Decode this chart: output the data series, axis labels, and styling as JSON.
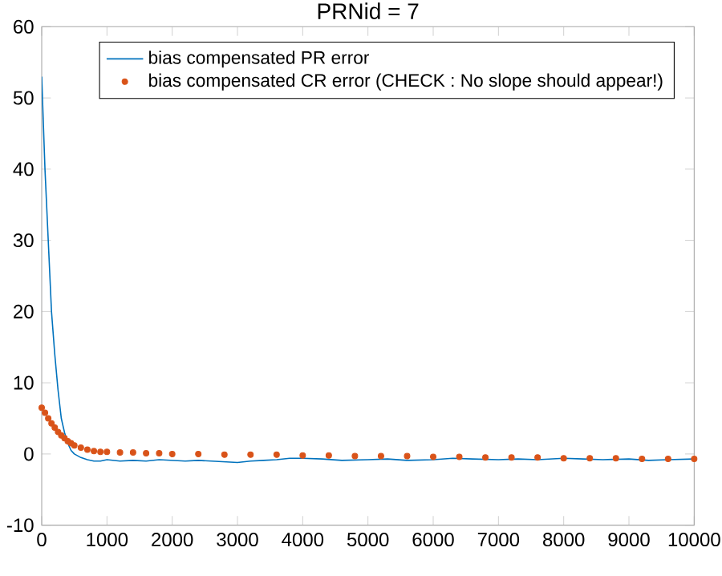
{
  "chart_data": {
    "type": "line",
    "title": "PRNid = 7",
    "xlim": [
      0,
      10000
    ],
    "xticks": [
      0,
      1000,
      2000,
      3000,
      4000,
      5000,
      6000,
      7000,
      8000,
      9000,
      10000
    ],
    "ylim": [
      -10,
      60
    ],
    "yticks": [
      -10,
      0,
      10,
      20,
      30,
      40,
      50,
      60
    ],
    "grid": false,
    "legend": "top right",
    "series": [
      {
        "name": "bias compensated PR error",
        "color": "#0072bd",
        "marker": "none",
        "x": [
          0,
          50,
          100,
          150,
          200,
          250,
          300,
          350,
          400,
          450,
          500,
          600,
          700,
          800,
          900,
          1000,
          1200,
          1400,
          1600,
          1800,
          2000,
          2200,
          2400,
          2600,
          2800,
          3000,
          3200,
          3400,
          3600,
          3800,
          4000,
          4300,
          4600,
          5000,
          5300,
          5600,
          6000,
          6300,
          6600,
          7000,
          7300,
          7600,
          8000,
          8300,
          8600,
          9000,
          9300,
          9600,
          10000
        ],
        "values": [
          53,
          40,
          30,
          20,
          14,
          9,
          5,
          3,
          1.5,
          0.5,
          0,
          -0.5,
          -0.8,
          -1,
          -1,
          -0.8,
          -1,
          -0.9,
          -1,
          -0.8,
          -0.9,
          -1,
          -0.9,
          -1,
          -1.1,
          -1.2,
          -1,
          -0.9,
          -0.8,
          -0.6,
          -0.6,
          -0.7,
          -0.9,
          -0.8,
          -0.7,
          -0.9,
          -0.8,
          -0.6,
          -0.7,
          -0.8,
          -0.7,
          -0.8,
          -0.6,
          -0.7,
          -0.8,
          -0.7,
          -0.9,
          -0.8,
          -0.7
        ]
      },
      {
        "name": "bias compensated CR error (CHECK : No slope should appear!)",
        "type": "scatter",
        "color": "#d95319",
        "marker": "circle",
        "x": [
          0,
          50,
          100,
          150,
          200,
          250,
          300,
          350,
          400,
          450,
          500,
          600,
          700,
          800,
          900,
          1000,
          1200,
          1400,
          1600,
          1800,
          2000,
          2400,
          2800,
          3200,
          3600,
          4000,
          4400,
          4800,
          5200,
          5600,
          6000,
          6400,
          6800,
          7200,
          7600,
          8000,
          8400,
          8800,
          9200,
          9600,
          10000
        ],
        "values": [
          6.5,
          5.8,
          5,
          4.3,
          3.7,
          3.1,
          2.6,
          2.2,
          1.8,
          1.5,
          1.2,
          0.9,
          0.6,
          0.4,
          0.3,
          0.3,
          0.2,
          0.2,
          0.1,
          0.1,
          0,
          0,
          -0.1,
          -0.1,
          -0.1,
          -0.2,
          -0.2,
          -0.3,
          -0.3,
          -0.3,
          -0.4,
          -0.4,
          -0.5,
          -0.5,
          -0.5,
          -0.6,
          -0.6,
          -0.6,
          -0.7,
          -0.7,
          -0.7
        ]
      }
    ]
  }
}
